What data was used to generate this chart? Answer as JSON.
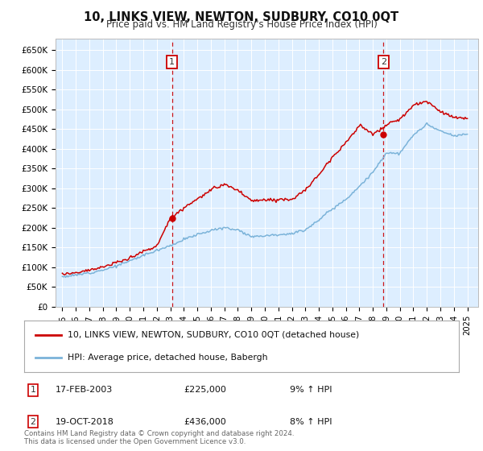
{
  "title": "10, LINKS VIEW, NEWTON, SUDBURY, CO10 0QT",
  "subtitle": "Price paid vs. HM Land Registry's House Price Index (HPI)",
  "background_color": "#ffffff",
  "plot_bg_color": "#ddeeff",
  "grid_color": "#ffffff",
  "sale1_date": 2003.12,
  "sale1_price": 225000,
  "sale2_date": 2018.79,
  "sale2_price": 436000,
  "ylim": [
    0,
    680000
  ],
  "xlim": [
    1994.5,
    2025.8
  ],
  "yticks": [
    0,
    50000,
    100000,
    150000,
    200000,
    250000,
    300000,
    350000,
    400000,
    450000,
    500000,
    550000,
    600000,
    650000
  ],
  "ytick_labels": [
    "£0",
    "£50K",
    "£100K",
    "£150K",
    "£200K",
    "£250K",
    "£300K",
    "£350K",
    "£400K",
    "£450K",
    "£500K",
    "£550K",
    "£600K",
    "£650K"
  ],
  "xticks": [
    1995,
    1996,
    1997,
    1998,
    1999,
    2000,
    2001,
    2002,
    2003,
    2004,
    2005,
    2006,
    2007,
    2008,
    2009,
    2010,
    2011,
    2012,
    2013,
    2014,
    2015,
    2016,
    2017,
    2018,
    2019,
    2020,
    2021,
    2022,
    2023,
    2024,
    2025
  ],
  "legend_label_red": "10, LINKS VIEW, NEWTON, SUDBURY, CO10 0QT (detached house)",
  "legend_label_blue": "HPI: Average price, detached house, Babergh",
  "footnote": "Contains HM Land Registry data © Crown copyright and database right 2024.\nThis data is licensed under the Open Government Licence v3.0.",
  "red_color": "#cc0000",
  "blue_color": "#7bb3d9",
  "dashed_color": "#cc0000",
  "number_box_color": "#cc0000",
  "hpi_keypoints_x": [
    1995,
    1996,
    1997,
    1998,
    1999,
    2000,
    2001,
    2002,
    2003,
    2004,
    2005,
    2006,
    2007,
    2008,
    2009,
    2010,
    2011,
    2012,
    2013,
    2014,
    2015,
    2016,
    2017,
    2018,
    2019,
    2020,
    2021,
    2022,
    2023,
    2024,
    2025
  ],
  "hpi_keypoints_y": [
    76000,
    80000,
    86000,
    93000,
    103000,
    116000,
    130000,
    143000,
    155000,
    170000,
    183000,
    193000,
    200000,
    195000,
    178000,
    180000,
    183000,
    185000,
    195000,
    220000,
    248000,
    272000,
    305000,
    340000,
    390000,
    388000,
    435000,
    462000,
    445000,
    432000,
    438000
  ],
  "red_keypoints_x": [
    1995,
    1996,
    1997,
    1998,
    1999,
    2000,
    2001,
    2002,
    2003,
    2004,
    2005,
    2006,
    2007,
    2008,
    2009,
    2010,
    2011,
    2012,
    2013,
    2014,
    2015,
    2016,
    2017,
    2018,
    2019,
    2020,
    2021,
    2022,
    2023,
    2024,
    2025
  ],
  "red_keypoints_y": [
    82000,
    87000,
    93000,
    100000,
    111000,
    124000,
    140000,
    153000,
    225000,
    250000,
    273000,
    295000,
    310000,
    295000,
    268000,
    270000,
    272000,
    272000,
    295000,
    335000,
    380000,
    415000,
    460000,
    436000,
    460000,
    475000,
    510000,
    520000,
    495000,
    480000,
    475000
  ],
  "noise_seed": 12,
  "hpi_noise_std": 1500,
  "red_noise_std": 2000
}
